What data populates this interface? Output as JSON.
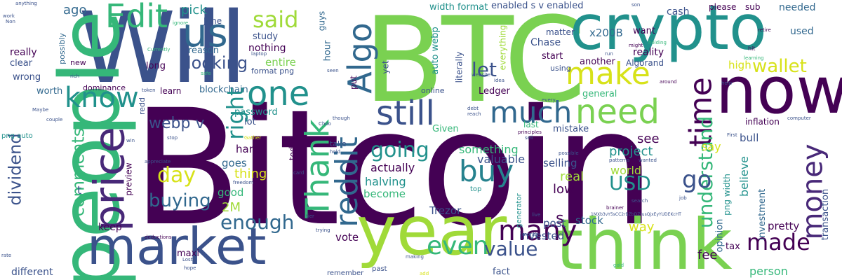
{
  "palette": {
    "dark_purple": "#440154",
    "indigo": "#3b528b",
    "blue": "#31688e",
    "teal": "#21918c",
    "green": "#35b779",
    "light_green": "#7ad151",
    "yellow": "#d7e219"
  },
  "words": [
    {
      "text": "Bitcoin",
      "color": "#440154"
    },
    {
      "text": "BTC",
      "color": "#7ad151"
    },
    {
      "text": "Will",
      "color": "#3b528b"
    },
    {
      "text": "people",
      "color": "#35b779"
    },
    {
      "text": "crypto",
      "color": "#21918c"
    },
    {
      "text": "now",
      "color": "#440154"
    },
    {
      "text": "year",
      "color": "#a0da39"
    },
    {
      "text": "think",
      "color": "#7ad151"
    },
    {
      "text": "market",
      "color": "#3b528b"
    },
    {
      "text": "price",
      "color": "#482878"
    },
    {
      "text": "us",
      "color": "#31688e"
    },
    {
      "text": "Edit",
      "color": "#35b779"
    },
    {
      "text": "one",
      "color": "#21918c"
    },
    {
      "text": "make",
      "color": "#d7e219"
    },
    {
      "text": "know",
      "color": "#21918c"
    },
    {
      "text": "still",
      "color": "#3b528b"
    },
    {
      "text": "much",
      "color": "#31688e"
    },
    {
      "text": "need",
      "color": "#7ad151"
    },
    {
      "text": "Algo",
      "color": "#31688e"
    },
    {
      "text": "Thank",
      "color": "#35b779"
    },
    {
      "text": "time",
      "color": "#440154"
    },
    {
      "text": "money",
      "color": "#482878"
    },
    {
      "text": "buy",
      "color": "#26828e"
    },
    {
      "text": "reddit",
      "color": "#31688e"
    },
    {
      "text": "many",
      "color": "#440154"
    },
    {
      "text": "even",
      "color": "#35b779"
    },
    {
      "text": "made",
      "color": "#440154"
    },
    {
      "text": "understand",
      "color": "#35b779"
    },
    {
      "text": "USD",
      "color": "#21918c"
    },
    {
      "text": "go",
      "color": "#3b528b"
    },
    {
      "text": "said",
      "color": "#a0da39"
    },
    {
      "text": "wallet",
      "color": "#d7e219"
    },
    {
      "text": "comments",
      "color": "#35b779"
    },
    {
      "text": "dividend",
      "color": "#3b528b"
    },
    {
      "text": "buying",
      "color": "#31688e"
    },
    {
      "text": "enough",
      "color": "#31688e"
    },
    {
      "text": "right",
      "color": "#21918c"
    },
    {
      "text": "going",
      "color": "#21918c"
    },
    {
      "text": "day",
      "color": "#d7e219"
    },
    {
      "text": "value",
      "color": "#3b528b"
    },
    {
      "text": "looking",
      "color": "#3b528b"
    },
    {
      "text": "webp v",
      "color": "#3b528b"
    },
    {
      "text": "pick",
      "color": "#21918c"
    },
    {
      "text": "ago",
      "color": "#31688e"
    },
    {
      "text": "s",
      "color": "#440154"
    },
    {
      "text": "let",
      "color": "#3b528b"
    },
    {
      "text": "world",
      "color": "#a0da39"
    },
    {
      "text": "real",
      "color": "#a0da39"
    },
    {
      "text": "see",
      "color": "#440154"
    },
    {
      "text": "project",
      "color": "#21918c"
    },
    {
      "text": "something",
      "color": "#35b779"
    },
    {
      "text": "valuable",
      "color": "#3b528b"
    },
    {
      "text": "actually",
      "color": "#440154"
    },
    {
      "text": "halving",
      "color": "#21918c"
    },
    {
      "text": "low",
      "color": "#440154"
    },
    {
      "text": "selling",
      "color": "#3b528b"
    },
    {
      "text": "believe",
      "color": "#21918c"
    },
    {
      "text": "stock",
      "color": "#31688e"
    },
    {
      "text": "post",
      "color": "#3b528b"
    },
    {
      "text": "way",
      "color": "#d7e219"
    },
    {
      "text": "pretty",
      "color": "#440154"
    },
    {
      "text": "say",
      "color": "#d7e219"
    },
    {
      "text": "invested",
      "color": "#3b528b"
    },
    {
      "text": "vote",
      "color": "#440154"
    },
    {
      "text": "Trezor",
      "color": "#3b528b"
    },
    {
      "text": "become",
      "color": "#35b779"
    },
    {
      "text": "good",
      "color": "#35b779"
    },
    {
      "text": "thing",
      "color": "#d7e219"
    },
    {
      "text": "hard",
      "color": "#440154"
    },
    {
      "text": "goes",
      "color": "#31688e"
    },
    {
      "text": "keep",
      "color": "#440154"
    },
    {
      "text": "2M",
      "color": "#a0da39"
    },
    {
      "text": "lot",
      "color": "#3b528b"
    },
    {
      "text": "maxi",
      "color": "#440154"
    },
    {
      "text": "fee",
      "color": "#440154"
    },
    {
      "text": "fact",
      "color": "#3b528b"
    },
    {
      "text": "different",
      "color": "#3b528b"
    },
    {
      "text": "person",
      "color": "#35b779"
    },
    {
      "text": "tax",
      "color": "#440154"
    },
    {
      "text": "opinion",
      "color": "#31688e"
    },
    {
      "text": "transaction",
      "color": "#3b528b"
    },
    {
      "text": "bull",
      "color": "#3b528b"
    },
    {
      "text": "investment",
      "color": "#31688e"
    },
    {
      "text": "inflation",
      "color": "#440154"
    },
    {
      "text": "high",
      "color": "#d7e219"
    },
    {
      "text": "Algorand",
      "color": "#3b528b"
    },
    {
      "text": "reality",
      "color": "#440154"
    },
    {
      "text": "cash",
      "color": "#3b528b"
    },
    {
      "text": "want",
      "color": "#440154"
    },
    {
      "text": "x200B",
      "color": "#31688e"
    },
    {
      "text": "Chase",
      "color": "#3b528b"
    },
    {
      "text": "matter",
      "color": "#3b528b"
    },
    {
      "text": "start",
      "color": "#440154"
    },
    {
      "text": "another",
      "color": "#440154"
    },
    {
      "text": "general",
      "color": "#35b779"
    },
    {
      "text": "using",
      "color": "#3b528b"
    },
    {
      "text": "please",
      "color": "#440154"
    },
    {
      "text": "sub",
      "color": "#440154"
    },
    {
      "text": "needed",
      "color": "#31688e"
    },
    {
      "text": "used",
      "color": "#31688e"
    },
    {
      "text": "enabled s v enabled",
      "color": "#3b528b"
    },
    {
      "text": "width format",
      "color": "#21918c"
    },
    {
      "text": "Ledger",
      "color": "#440154"
    },
    {
      "text": "online",
      "color": "#3b528b"
    },
    {
      "text": "literally",
      "color": "#3b528b"
    },
    {
      "text": "auto webp",
      "color": "#21918c"
    },
    {
      "text": "everything",
      "color": "#a0da39"
    },
    {
      "text": "Given",
      "color": "#35b779"
    },
    {
      "text": "mistake",
      "color": "#3b528b"
    },
    {
      "text": "last",
      "color": "#35b779"
    },
    {
      "text": "study",
      "color": "#3b528b"
    },
    {
      "text": "nothing",
      "color": "#440154"
    },
    {
      "text": "reason",
      "color": "#31688e"
    },
    {
      "text": "entire",
      "color": "#7ad151"
    },
    {
      "text": "format png",
      "color": "#3b528b"
    },
    {
      "text": "long",
      "color": "#440154"
    },
    {
      "text": "learn",
      "color": "#440154"
    },
    {
      "text": "blockchain",
      "color": "#31688e"
    },
    {
      "text": "password",
      "color": "#21918c"
    },
    {
      "text": "today",
      "color": "#440154"
    },
    {
      "text": "take",
      "color": "#3b528b"
    },
    {
      "text": "preview",
      "color": "#440154"
    },
    {
      "text": "redd",
      "color": "#3b528b"
    },
    {
      "text": "really",
      "color": "#440154"
    },
    {
      "text": "clear",
      "color": "#3b528b"
    },
    {
      "text": "wrong",
      "color": "#3b528b"
    },
    {
      "text": "worth",
      "color": "#31688e"
    },
    {
      "text": "possibly",
      "color": "#31688e"
    },
    {
      "text": "new",
      "color": "#440154"
    },
    {
      "text": "dominance",
      "color": "#440154"
    },
    {
      "text": "hour",
      "color": "#31688e"
    },
    {
      "text": "guys",
      "color": "#31688e"
    },
    {
      "text": "June",
      "color": "#3b528b"
    },
    {
      "text": "yet",
      "color": "#3b528b"
    },
    {
      "text": "put",
      "color": "#440154"
    },
    {
      "text": "t",
      "color": "#3b528b"
    },
    {
      "text": "png auto",
      "color": "#21918c"
    },
    {
      "text": "png width",
      "color": "#21918c"
    },
    {
      "text": "generator",
      "color": "#21918c"
    },
    {
      "text": "top",
      "color": "#21918c"
    },
    {
      "text": "anything",
      "color": "#3b528b"
    },
    {
      "text": "Currently",
      "color": "#35b779"
    },
    {
      "text": "laptop",
      "color": "#3b528b"
    },
    {
      "text": "safe",
      "color": "#35b779"
    },
    {
      "text": "token",
      "color": "#3b528b"
    },
    {
      "text": "website",
      "color": "#3b528b"
    },
    {
      "text": "every",
      "color": "#3b528b"
    },
    {
      "text": "debt",
      "color": "#3b528b"
    },
    {
      "text": "reach",
      "color": "#3b528b"
    },
    {
      "text": "sell",
      "color": "#3b528b"
    },
    {
      "text": "principles",
      "color": "#440154"
    },
    {
      "text": "First",
      "color": "#3b528b"
    },
    {
      "text": "computer",
      "color": "#3b528b"
    },
    {
      "text": "around",
      "color": "#440154"
    },
    {
      "text": "retire",
      "color": "#440154"
    },
    {
      "text": "hit",
      "color": "#440154"
    },
    {
      "text": "help",
      "color": "#3b528b"
    },
    {
      "text": "holding",
      "color": "#35b779"
    },
    {
      "text": "might",
      "color": "#440154"
    },
    {
      "text": "son",
      "color": "#3b528b"
    },
    {
      "text": "ignore",
      "color": "#35b779"
    },
    {
      "text": "appreciate",
      "color": "#3b528b"
    },
    {
      "text": "freedom",
      "color": "#3b528b"
    },
    {
      "text": "card",
      "color": "#3b528b"
    },
    {
      "text": "hold",
      "color": "#3b528b"
    },
    {
      "text": "though",
      "color": "#3b528b"
    },
    {
      "text": "possible",
      "color": "#3b528b"
    },
    {
      "text": "wanted",
      "color": "#3b528b"
    },
    {
      "text": "patterns",
      "color": "#3b528b"
    },
    {
      "text": "search",
      "color": "#3b528b"
    },
    {
      "text": "brainer",
      "color": "#440154"
    },
    {
      "text": "1MXb3vY5sCC2rBZbDZrusQjxEyYUDEKcHT",
      "color": "#3b528b"
    },
    {
      "text": "live",
      "color": "#3b528b"
    },
    {
      "text": "month",
      "color": "#3b528b"
    },
    {
      "text": "trying",
      "color": "#3b528b"
    },
    {
      "text": "deductions",
      "color": "#440154"
    },
    {
      "text": "tier",
      "color": "#3b528b"
    },
    {
      "text": "remember",
      "color": "#3b528b"
    },
    {
      "text": "past",
      "color": "#3b528b"
    },
    {
      "text": "making",
      "color": "#3b528b"
    },
    {
      "text": "hope",
      "color": "#3b528b"
    },
    {
      "text": "rate",
      "color": "#3b528b"
    },
    {
      "text": "work",
      "color": "#3b528b"
    },
    {
      "text": "Non",
      "color": "#3b528b"
    },
    {
      "text": "Maybe",
      "color": "#3b528b"
    },
    {
      "text": "couple",
      "color": "#3b528b"
    },
    {
      "text": "rich",
      "color": "#3b528b"
    },
    {
      "text": "stop",
      "color": "#3b528b"
    },
    {
      "text": "Lost",
      "color": "#3b528b"
    },
    {
      "text": "gold",
      "color": "#35b779"
    },
    {
      "text": "seen",
      "color": "#3b528b"
    },
    {
      "text": "idea",
      "color": "#3b528b"
    },
    {
      "text": "job",
      "color": "#3b528b"
    },
    {
      "text": "learning",
      "color": "#35b779"
    },
    {
      "text": "run",
      "color": "#3b528b"
    },
    {
      "text": "Choo",
      "color": "#3b528b"
    },
    {
      "text": "Gather",
      "color": "#d7e219"
    },
    {
      "text": "win",
      "color": "#3b528b"
    },
    {
      "text": "add",
      "color": "#d7e219"
    }
  ]
}
